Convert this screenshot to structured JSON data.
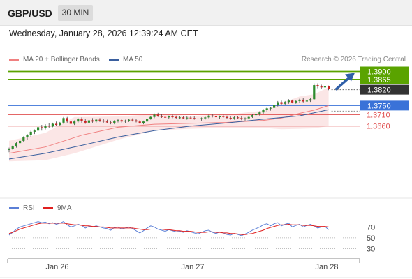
{
  "header": {
    "symbol": "GBP/USD",
    "timeframe": "30 MIN",
    "datetime": "Wednesday, January 28, 2026 12:39:24 AM CET"
  },
  "legend": {
    "ma20_label": "MA 20 + Bollinger Bands",
    "ma20_color": "#f08080",
    "ma50_label": "MA 50",
    "ma50_color": "#3a5f9e",
    "research": "Research © 2026 Trading Central"
  },
  "rsi_legend": {
    "rsi_label": "RSI",
    "rsi_color": "#5b7fd6",
    "ma_label": "9MA",
    "ma_color": "#e02020"
  },
  "colors": {
    "resistance": "#5aa300",
    "support": "#3a72d8",
    "secondary": "#e05050",
    "pivot": "#333333",
    "arrow": "#2f5fa8",
    "up_candle": "#2e8b2e",
    "down_candle": "#cc2222"
  },
  "chart_data": [
    {
      "type": "candlestick",
      "symbol": "GBP/USD",
      "interval": "30 MIN",
      "x_tick_labels": [
        "Jan 26",
        "Jan 27",
        "Jan 28"
      ],
      "ylim": [
        1.334,
        1.392
      ],
      "levels": [
        {
          "label": "1.3900",
          "value": 1.39,
          "kind": "resistance"
        },
        {
          "label": "1.3865",
          "value": 1.3865,
          "kind": "resistance"
        },
        {
          "label": "1.3820",
          "value": 1.382,
          "kind": "pivot"
        },
        {
          "label": "1.3750",
          "value": 1.375,
          "kind": "support"
        },
        {
          "label": "1.3710",
          "value": 1.371,
          "kind": "secondary"
        },
        {
          "label": "1.3660",
          "value": 1.366,
          "kind": "secondary"
        }
      ],
      "candles": [
        [
          1.3555,
          1.3565,
          1.3545,
          1.356
        ],
        [
          1.356,
          1.3575,
          1.3555,
          1.357
        ],
        [
          1.357,
          1.359,
          1.3565,
          1.3585
        ],
        [
          1.3585,
          1.36,
          1.3575,
          1.3595
        ],
        [
          1.3595,
          1.3615,
          1.359,
          1.361
        ],
        [
          1.361,
          1.3625,
          1.36,
          1.362
        ],
        [
          1.362,
          1.364,
          1.361,
          1.3635
        ],
        [
          1.3635,
          1.3645,
          1.3625,
          1.364
        ],
        [
          1.364,
          1.366,
          1.363,
          1.3655
        ],
        [
          1.3655,
          1.3665,
          1.364,
          1.365
        ],
        [
          1.365,
          1.3668,
          1.3645,
          1.3662
        ],
        [
          1.3662,
          1.3672,
          1.365,
          1.3658
        ],
        [
          1.3658,
          1.3675,
          1.3655,
          1.367
        ],
        [
          1.367,
          1.368,
          1.366,
          1.3665
        ],
        [
          1.3665,
          1.3678,
          1.366,
          1.3675
        ],
        [
          1.3675,
          1.37,
          1.367,
          1.3695
        ],
        [
          1.3695,
          1.37,
          1.3675,
          1.368
        ],
        [
          1.368,
          1.369,
          1.3665,
          1.367
        ],
        [
          1.367,
          1.3685,
          1.3665,
          1.368
        ],
        [
          1.368,
          1.3695,
          1.3675,
          1.369
        ],
        [
          1.369,
          1.3698,
          1.3675,
          1.3682
        ],
        [
          1.3682,
          1.3692,
          1.367,
          1.3675
        ],
        [
          1.3675,
          1.369,
          1.3672,
          1.3685
        ],
        [
          1.3685,
          1.3695,
          1.3675,
          1.368
        ],
        [
          1.368,
          1.3692,
          1.3675,
          1.3688
        ],
        [
          1.3688,
          1.3695,
          1.3678,
          1.3684
        ],
        [
          1.3684,
          1.369,
          1.3675,
          1.368
        ],
        [
          1.368,
          1.3688,
          1.3672,
          1.3676
        ],
        [
          1.3676,
          1.3684,
          1.3668,
          1.3672
        ],
        [
          1.3672,
          1.3686,
          1.3668,
          1.3682
        ],
        [
          1.3682,
          1.369,
          1.3676,
          1.3686
        ],
        [
          1.3686,
          1.3692,
          1.3675,
          1.368
        ],
        [
          1.368,
          1.3688,
          1.3674,
          1.3684
        ],
        [
          1.3684,
          1.3692,
          1.3678,
          1.3688
        ],
        [
          1.3688,
          1.3694,
          1.368,
          1.3685
        ],
        [
          1.3685,
          1.369,
          1.3676,
          1.368
        ],
        [
          1.368,
          1.3686,
          1.367,
          1.3674
        ],
        [
          1.3674,
          1.3684,
          1.3668,
          1.368
        ],
        [
          1.368,
          1.3696,
          1.3676,
          1.3692
        ],
        [
          1.3692,
          1.3705,
          1.3688,
          1.37
        ],
        [
          1.37,
          1.3715,
          1.3695,
          1.371
        ],
        [
          1.371,
          1.3718,
          1.37,
          1.3705
        ],
        [
          1.3705,
          1.3712,
          1.3696,
          1.37
        ],
        [
          1.37,
          1.3708,
          1.3692,
          1.3698
        ],
        [
          1.3698,
          1.3706,
          1.369,
          1.3702
        ],
        [
          1.3702,
          1.371,
          1.3695,
          1.37
        ],
        [
          1.37,
          1.3706,
          1.3692,
          1.3696
        ],
        [
          1.3696,
          1.3704,
          1.369,
          1.3698
        ],
        [
          1.3698,
          1.3704,
          1.369,
          1.3694
        ],
        [
          1.3694,
          1.3702,
          1.3688,
          1.3697
        ],
        [
          1.3697,
          1.3704,
          1.369,
          1.3695
        ],
        [
          1.3695,
          1.3702,
          1.3688,
          1.3693
        ],
        [
          1.3693,
          1.37,
          1.3686,
          1.369
        ],
        [
          1.369,
          1.3698,
          1.3684,
          1.3694
        ],
        [
          1.3694,
          1.3702,
          1.3688,
          1.3698
        ],
        [
          1.3698,
          1.371,
          1.3694,
          1.3706
        ],
        [
          1.3706,
          1.3712,
          1.3698,
          1.3702
        ],
        [
          1.3702,
          1.3708,
          1.3695,
          1.3699
        ],
        [
          1.3699,
          1.3706,
          1.3692,
          1.3703
        ],
        [
          1.3703,
          1.371,
          1.3696,
          1.37
        ],
        [
          1.37,
          1.3706,
          1.3692,
          1.3696
        ],
        [
          1.3696,
          1.3702,
          1.3688,
          1.3694
        ],
        [
          1.3694,
          1.3702,
          1.3688,
          1.3698
        ],
        [
          1.3698,
          1.3704,
          1.369,
          1.3695
        ],
        [
          1.3695,
          1.3702,
          1.3686,
          1.369
        ],
        [
          1.369,
          1.3698,
          1.3684,
          1.3694
        ],
        [
          1.3694,
          1.3704,
          1.369,
          1.37
        ],
        [
          1.37,
          1.3712,
          1.3696,
          1.3708
        ],
        [
          1.3708,
          1.3716,
          1.37,
          1.3712
        ],
        [
          1.3712,
          1.3725,
          1.3706,
          1.372
        ],
        [
          1.372,
          1.3735,
          1.3714,
          1.373
        ],
        [
          1.373,
          1.3742,
          1.3722,
          1.3738
        ],
        [
          1.3738,
          1.3745,
          1.3728,
          1.374
        ],
        [
          1.374,
          1.3756,
          1.3734,
          1.3752
        ],
        [
          1.3752,
          1.377,
          1.3746,
          1.3765
        ],
        [
          1.3765,
          1.3772,
          1.3752,
          1.3758
        ],
        [
          1.3758,
          1.377,
          1.3752,
          1.3766
        ],
        [
          1.3766,
          1.3778,
          1.3758,
          1.3772
        ],
        [
          1.3772,
          1.3776,
          1.376,
          1.3764
        ],
        [
          1.3764,
          1.3774,
          1.3758,
          1.377
        ],
        [
          1.377,
          1.378,
          1.3762,
          1.3776
        ],
        [
          1.3776,
          1.3782,
          1.3764,
          1.3768
        ],
        [
          1.3768,
          1.3776,
          1.376,
          1.3772
        ],
        [
          1.3772,
          1.3782,
          1.3766,
          1.3778
        ],
        [
          1.3778,
          1.3848,
          1.3774,
          1.384
        ],
        [
          1.384,
          1.3848,
          1.3826,
          1.3834
        ],
        [
          1.3834,
          1.3842,
          1.3824,
          1.383
        ],
        [
          1.383,
          1.384,
          1.3822,
          1.3836
        ],
        [
          1.3836,
          1.3838,
          1.3818,
          1.3822
        ]
      ],
      "ma20": [
        [
          0,
          1.354
        ],
        [
          10,
          1.3568
        ],
        [
          20,
          1.362
        ],
        [
          30,
          1.3655
        ],
        [
          40,
          1.3668
        ],
        [
          50,
          1.3672
        ],
        [
          60,
          1.3676
        ],
        [
          70,
          1.3685
        ],
        [
          75,
          1.3695
        ],
        [
          80,
          1.3716
        ],
        [
          84,
          1.373
        ],
        [
          88,
          1.375
        ]
      ],
      "bb_upper": [
        [
          0,
          1.3595
        ],
        [
          10,
          1.363
        ],
        [
          18,
          1.37
        ],
        [
          30,
          1.3702
        ],
        [
          40,
          1.3712
        ],
        [
          50,
          1.3705
        ],
        [
          60,
          1.371
        ],
        [
          70,
          1.3728
        ],
        [
          75,
          1.376
        ],
        [
          80,
          1.379
        ],
        [
          84,
          1.38
        ],
        [
          88,
          1.383
        ]
      ],
      "bb_lower": [
        [
          0,
          1.3505
        ],
        [
          10,
          1.351
        ],
        [
          18,
          1.354
        ],
        [
          30,
          1.36
        ],
        [
          40,
          1.364
        ],
        [
          50,
          1.3648
        ],
        [
          60,
          1.3652
        ],
        [
          70,
          1.3652
        ],
        [
          75,
          1.3646
        ],
        [
          80,
          1.3648
        ],
        [
          84,
          1.365
        ],
        [
          88,
          1.366
        ]
      ],
      "ma50": [
        [
          0,
          1.3515
        ],
        [
          10,
          1.354
        ],
        [
          20,
          1.3575
        ],
        [
          30,
          1.3612
        ],
        [
          40,
          1.364
        ],
        [
          50,
          1.366
        ],
        [
          60,
          1.3674
        ],
        [
          70,
          1.369
        ],
        [
          80,
          1.3705
        ],
        [
          84,
          1.3718
        ],
        [
          88,
          1.3732
        ]
      ],
      "projection": {
        "from": 1.382,
        "to": 1.39
      }
    },
    {
      "type": "line",
      "title": "RSI",
      "y_ticks": [
        30,
        50,
        70
      ],
      "ylim": [
        15,
        95
      ],
      "series": [
        {
          "name": "RSI",
          "values": [
            55,
            60,
            66,
            70,
            72,
            74,
            76,
            78,
            80,
            78,
            79,
            76,
            78,
            75,
            77,
            80,
            74,
            70,
            72,
            75,
            73,
            68,
            71,
            70,
            72,
            70,
            68,
            67,
            64,
            69,
            70,
            66,
            68,
            70,
            67,
            63,
            59,
            63,
            68,
            72,
            70,
            66,
            64,
            62,
            65,
            63,
            61,
            62,
            60,
            63,
            61,
            59,
            57,
            60,
            63,
            64,
            60,
            58,
            61,
            59,
            56,
            55,
            58,
            56,
            54,
            57,
            60,
            64,
            67,
            70,
            74,
            76,
            72,
            76,
            78,
            72,
            75,
            77,
            70,
            73,
            75,
            70,
            73,
            75,
            72,
            68,
            70,
            71,
            65
          ]
        },
        {
          "name": "9MA",
          "values": [
            58,
            60,
            63,
            66,
            68,
            70,
            72,
            74,
            76,
            77,
            77,
            77,
            77,
            77,
            77,
            77,
            76,
            75,
            74,
            74,
            73,
            72,
            72,
            71,
            71,
            70,
            70,
            69,
            68,
            68,
            68,
            68,
            68,
            68,
            68,
            67,
            66,
            65,
            65,
            66,
            66,
            66,
            66,
            65,
            65,
            64,
            63,
            63,
            62,
            62,
            62,
            61,
            60,
            60,
            60,
            61,
            61,
            60,
            60,
            59,
            59,
            58,
            58,
            57,
            56,
            56,
            57,
            58,
            60,
            62,
            64,
            67,
            69,
            71,
            73,
            74,
            74,
            75,
            74,
            74,
            74,
            73,
            73,
            73,
            72,
            71,
            71,
            71,
            70
          ]
        }
      ],
      "x_tick_labels": [
        "Jan 26",
        "Jan 27",
        "Jan 28"
      ]
    }
  ]
}
